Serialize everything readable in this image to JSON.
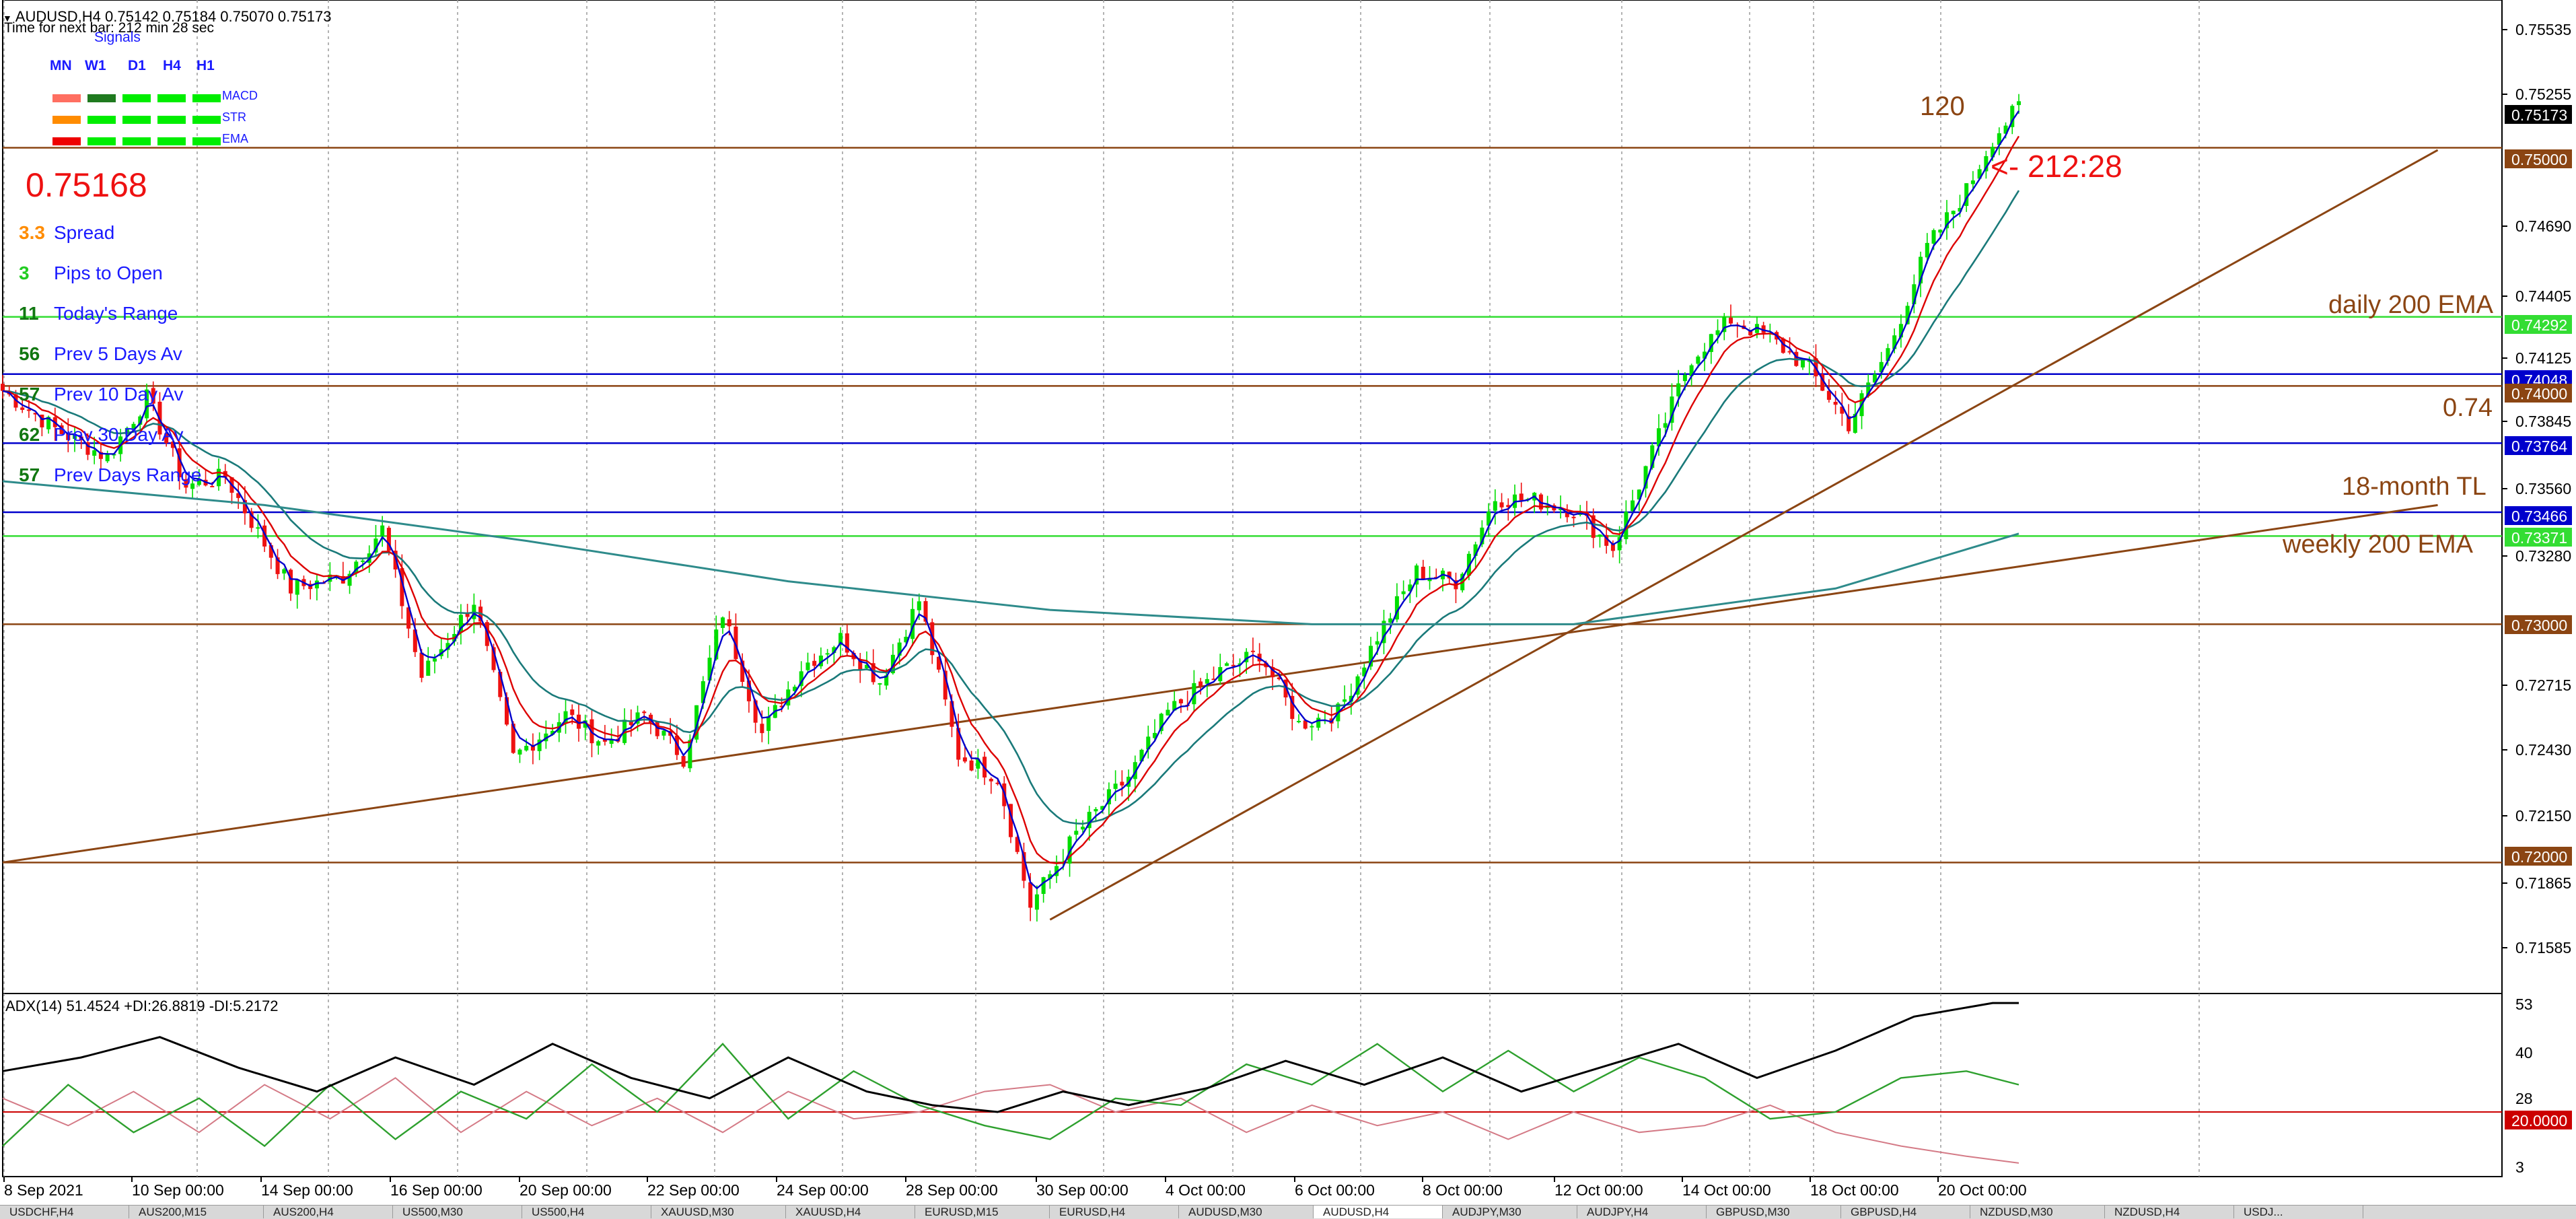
{
  "header": {
    "symbol_line": "AUDUSD,H4  0.75142 0.75184 0.75070 0.75173",
    "timer": "Time for next bar: 212 min 28 sec"
  },
  "signals": {
    "title": "Signals",
    "timeframes": [
      "MN",
      "W1",
      "D1",
      "H4",
      "H1"
    ],
    "rows": [
      {
        "name": "MACD",
        "colors": [
          "#ff6f61",
          "#1f7a1f",
          "#00ee00",
          "#00ee00",
          "#00ee00"
        ]
      },
      {
        "name": "STR",
        "colors": [
          "#ff8c00",
          "#00ee00",
          "#00ee00",
          "#00ee00",
          "#00ee00"
        ]
      },
      {
        "name": "EMA",
        "colors": [
          "#ee0000",
          "#00ee00",
          "#00ee00",
          "#00ee00",
          "#00ee00"
        ]
      }
    ]
  },
  "stats": {
    "price": "0.75168",
    "rows": [
      {
        "value": "3.3",
        "label": "Spread",
        "value_color": "#ff8c00"
      },
      {
        "value": "3",
        "label": "Pips to Open",
        "value_color": "#22cc22"
      },
      {
        "value": "11",
        "label": "Today's Range",
        "value_color": "#117711"
      },
      {
        "value": "56",
        "label": "Prev 5 Days Av",
        "value_color": "#117711"
      },
      {
        "value": "57",
        "label": "Prev 10 Day Av",
        "value_color": "#117711"
      },
      {
        "value": "62",
        "label": "Prev 30 Day Av",
        "value_color": "#117711"
      },
      {
        "value": "57",
        "label": "Prev Days Range",
        "value_color": "#117711"
      }
    ]
  },
  "annotations": {
    "bar_count": "120",
    "countdown": "<- 212:28",
    "daily_ema": "daily 200 EMA",
    "level_074": "0.74",
    "trendline": "18-month TL",
    "weekly_ema": "weekly 200 EMA"
  },
  "price_axis": {
    "labels": [
      "0.75535",
      "0.75255",
      "0.74690",
      "0.74405",
      "0.74125",
      "0.73845",
      "0.73560",
      "0.73280",
      "0.72715",
      "0.72430",
      "0.72150",
      "0.71865",
      "0.71585"
    ],
    "badges": [
      {
        "text": "0.75173",
        "bg": "#000000",
        "fg": "#ffffff"
      },
      {
        "text": "0.75000",
        "bg": "#8b4513",
        "fg": "#ffffff"
      },
      {
        "text": "0.74292",
        "bg": "#33dd33",
        "fg": "#ffffff"
      },
      {
        "text": "0.74048",
        "bg": "#0000cc",
        "fg": "#ffffff"
      },
      {
        "text": "0.74000",
        "bg": "#8b4513",
        "fg": "#ffffff"
      },
      {
        "text": "0.73764",
        "bg": "#0000cc",
        "fg": "#ffffff"
      },
      {
        "text": "0.73466",
        "bg": "#0000cc",
        "fg": "#ffffff"
      },
      {
        "text": "0.73371",
        "bg": "#33dd33",
        "fg": "#ffffff"
      },
      {
        "text": "0.73000",
        "bg": "#8b4513",
        "fg": "#ffffff"
      },
      {
        "text": "0.72000",
        "bg": "#8b4513",
        "fg": "#ffffff"
      }
    ]
  },
  "adx": {
    "title": "ADX(14) 51.4524 +DI:26.8819 -DI:5.2172",
    "axis_labels": [
      "53",
      "40",
      "28",
      "3"
    ],
    "badge": "20.0000"
  },
  "time_axis": {
    "labels": [
      "8 Sep 2021",
      "10 Sep 00:00",
      "14 Sep 00:00",
      "16 Sep 00:00",
      "20 Sep 00:00",
      "22 Sep 00:00",
      "24 Sep 00:00",
      "28 Sep 00:00",
      "30 Sep 00:00",
      "4 Oct 00:00",
      "6 Oct 00:00",
      "8 Oct 00:00",
      "12 Oct 00:00",
      "14 Oct 00:00",
      "18 Oct 00:00",
      "20 Oct 00:00"
    ]
  },
  "tabs": [
    "USDCHF,H4",
    "AUS200,M15",
    "AUS200,H4",
    "US500,M30",
    "US500,H4",
    "XAUUSD,M30",
    "XAUUSD,H4",
    "EURUSD,M15",
    "EURUSD,H4",
    "AUDUSD,M30",
    "AUDUSD,H4",
    "AUDJPY,M30",
    "AUDJPY,H4",
    "GBPUSD,M30",
    "GBPUSD,H4",
    "NZDUSD,M30",
    "NZDUSD,H4",
    "USDJ..."
  ],
  "active_tab": "AUDUSD,H4",
  "colors": {
    "bull": "#00dd00",
    "bear": "#ee1111",
    "fast_ema": "#0000cc",
    "mid_ema": "#dd0000",
    "slow_ema": "#1a7a7a",
    "ema200": "#2e8b8b",
    "trendline": "#8b4513",
    "grid": "#9a9a9a"
  },
  "chart_data": {
    "type": "candlestick",
    "symbol": "AUDUSD",
    "timeframe": "H4",
    "ylim": [
      0.7145,
      0.7562
    ],
    "x_start": "8 Sep 2021",
    "x_end": "20 Oct 2021",
    "waypoints": [
      [
        0,
        0.7398
      ],
      [
        8,
        0.7382
      ],
      [
        16,
        0.737
      ],
      [
        22,
        0.7395
      ],
      [
        28,
        0.7358
      ],
      [
        34,
        0.7362
      ],
      [
        44,
        0.7315
      ],
      [
        52,
        0.732
      ],
      [
        58,
        0.734
      ],
      [
        64,
        0.7278
      ],
      [
        72,
        0.731
      ],
      [
        78,
        0.7244
      ],
      [
        86,
        0.7262
      ],
      [
        92,
        0.725
      ],
      [
        98,
        0.7262
      ],
      [
        104,
        0.7244
      ],
      [
        110,
        0.7305
      ],
      [
        116,
        0.7254
      ],
      [
        122,
        0.7282
      ],
      [
        128,
        0.7294
      ],
      [
        134,
        0.7276
      ],
      [
        140,
        0.731
      ],
      [
        146,
        0.7245
      ],
      [
        152,
        0.7236
      ],
      [
        157,
        0.7182
      ],
      [
        164,
        0.7212
      ],
      [
        172,
        0.7236
      ],
      [
        178,
        0.7263
      ],
      [
        186,
        0.728
      ],
      [
        192,
        0.7288
      ],
      [
        198,
        0.7258
      ],
      [
        204,
        0.7263
      ],
      [
        210,
        0.7295
      ],
      [
        216,
        0.7322
      ],
      [
        222,
        0.7318
      ],
      [
        228,
        0.7353
      ],
      [
        234,
        0.7352
      ],
      [
        240,
        0.7348
      ],
      [
        246,
        0.7332
      ],
      [
        252,
        0.7372
      ],
      [
        258,
        0.7412
      ],
      [
        264,
        0.7428
      ],
      [
        270,
        0.742
      ],
      [
        276,
        0.7407
      ],
      [
        282,
        0.7384
      ],
      [
        288,
        0.7415
      ],
      [
        294,
        0.7458
      ],
      [
        300,
        0.7482
      ],
      [
        304,
        0.7504
      ],
      [
        308,
        0.7517
      ]
    ],
    "ema_fast_lag": 1.5,
    "ema_mid_lag": 2.5,
    "ema_slow_lag": 6,
    "ema200_points": [
      [
        0,
        0.736
      ],
      [
        40,
        0.735
      ],
      [
        80,
        0.7335
      ],
      [
        120,
        0.7318
      ],
      [
        160,
        0.7306
      ],
      [
        200,
        0.73
      ],
      [
        240,
        0.73
      ],
      [
        280,
        0.7315
      ],
      [
        308,
        0.7338
      ]
    ],
    "trendlines": [
      {
        "name": "18-month TL",
        "p1": [
          0,
          0.72
        ],
        "p2": [
          372,
          0.735
        ]
      },
      {
        "name": "Oct TL",
        "p1": [
          160,
          0.7176
        ],
        "p2": [
          372,
          0.7499
        ]
      }
    ],
    "hlines": [
      {
        "value": 0.75,
        "color": "#8b4513"
      },
      {
        "value": 0.7429,
        "color": "#33dd33"
      },
      {
        "value": 0.7405,
        "color": "#0000cc"
      },
      {
        "value": 0.74,
        "color": "#8b4513"
      },
      {
        "value": 0.7376,
        "color": "#0000cc"
      },
      {
        "value": 0.7347,
        "color": "#0000cc"
      },
      {
        "value": 0.7337,
        "color": "#33dd33"
      },
      {
        "value": 0.73,
        "color": "#8b4513"
      },
      {
        "value": 0.72,
        "color": "#8b4513"
      }
    ],
    "adx_ylim": [
      3,
      53
    ],
    "adx_level": 20,
    "adx": {
      "adx": [
        [
          0,
          32
        ],
        [
          12,
          36
        ],
        [
          24,
          42
        ],
        [
          36,
          33
        ],
        [
          48,
          26
        ],
        [
          60,
          36
        ],
        [
          72,
          28
        ],
        [
          84,
          40
        ],
        [
          96,
          30
        ],
        [
          108,
          24
        ],
        [
          120,
          36
        ],
        [
          132,
          26
        ],
        [
          142,
          22
        ],
        [
          152,
          20
        ],
        [
          162,
          26
        ],
        [
          172,
          22
        ],
        [
          184,
          27
        ],
        [
          196,
          35
        ],
        [
          208,
          28
        ],
        [
          220,
          36
        ],
        [
          232,
          26
        ],
        [
          244,
          33
        ],
        [
          256,
          40
        ],
        [
          268,
          30
        ],
        [
          280,
          38
        ],
        [
          292,
          48
        ],
        [
          304,
          52
        ],
        [
          308,
          52
        ]
      ],
      "plus_di": [
        [
          0,
          10
        ],
        [
          10,
          28
        ],
        [
          20,
          14
        ],
        [
          30,
          24
        ],
        [
          40,
          10
        ],
        [
          50,
          28
        ],
        [
          60,
          12
        ],
        [
          70,
          26
        ],
        [
          80,
          18
        ],
        [
          90,
          34
        ],
        [
          100,
          20
        ],
        [
          110,
          40
        ],
        [
          120,
          18
        ],
        [
          130,
          32
        ],
        [
          140,
          22
        ],
        [
          150,
          16
        ],
        [
          160,
          12
        ],
        [
          170,
          24
        ],
        [
          180,
          22
        ],
        [
          190,
          34
        ],
        [
          200,
          28
        ],
        [
          210,
          40
        ],
        [
          220,
          26
        ],
        [
          230,
          38
        ],
        [
          240,
          26
        ],
        [
          250,
          36
        ],
        [
          260,
          30
        ],
        [
          270,
          18
        ],
        [
          280,
          20
        ],
        [
          290,
          30
        ],
        [
          300,
          32
        ],
        [
          308,
          28
        ]
      ],
      "minus_di": [
        [
          0,
          24
        ],
        [
          10,
          16
        ],
        [
          20,
          26
        ],
        [
          30,
          14
        ],
        [
          40,
          28
        ],
        [
          50,
          18
        ],
        [
          60,
          30
        ],
        [
          70,
          14
        ],
        [
          80,
          26
        ],
        [
          90,
          16
        ],
        [
          100,
          24
        ],
        [
          110,
          14
        ],
        [
          120,
          26
        ],
        [
          130,
          18
        ],
        [
          140,
          20
        ],
        [
          150,
          26
        ],
        [
          160,
          28
        ],
        [
          170,
          20
        ],
        [
          180,
          24
        ],
        [
          190,
          14
        ],
        [
          200,
          22
        ],
        [
          210,
          16
        ],
        [
          220,
          20
        ],
        [
          230,
          12
        ],
        [
          240,
          20
        ],
        [
          250,
          14
        ],
        [
          260,
          16
        ],
        [
          270,
          22
        ],
        [
          280,
          14
        ],
        [
          290,
          10
        ],
        [
          300,
          7
        ],
        [
          308,
          5
        ]
      ]
    }
  }
}
